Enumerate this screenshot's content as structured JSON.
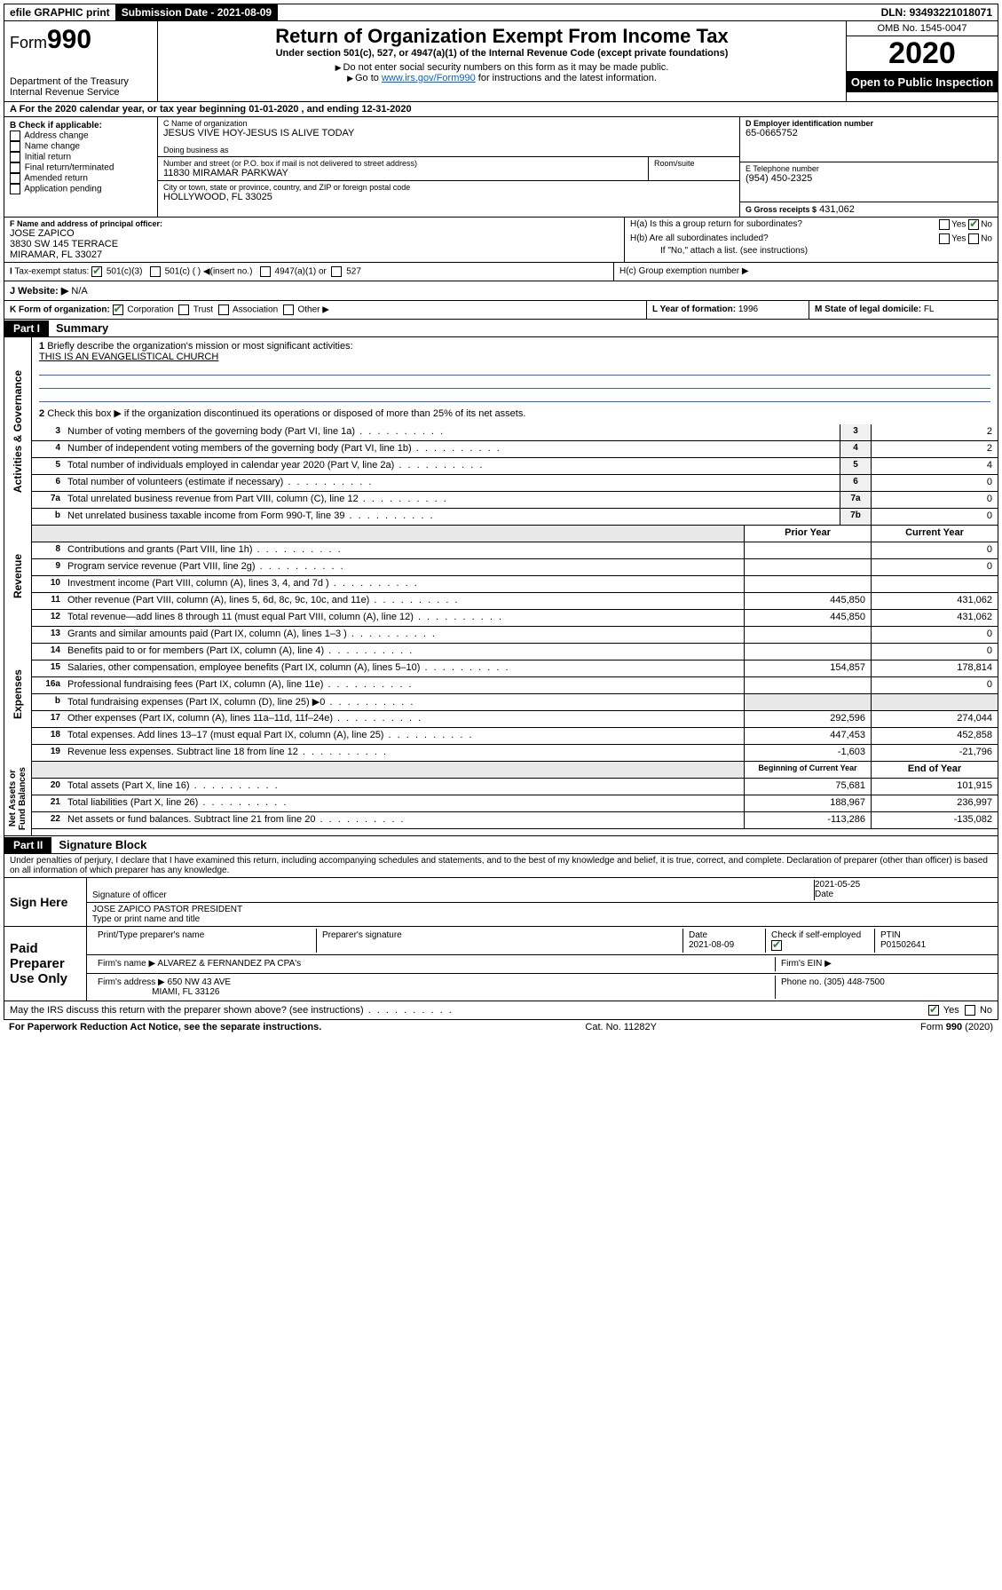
{
  "topbar": {
    "efile": "efile GRAPHIC print",
    "subdate_label": "Submission Date - ",
    "subdate": "2021-08-09",
    "dln_label": "DLN: ",
    "dln": "93493221018071"
  },
  "header": {
    "form_label": "Form",
    "form_num": "990",
    "dept": "Department of the Treasury\nInternal Revenue Service",
    "title": "Return of Organization Exempt From Income Tax",
    "subtitle": "Under section 501(c), 527, or 4947(a)(1) of the Internal Revenue Code (except private foundations)",
    "warn1": "Do not enter social security numbers on this form as it may be made public.",
    "warn2_pre": "Go to ",
    "warn2_link": "www.irs.gov/Form990",
    "warn2_post": " for instructions and the latest information.",
    "omb": "OMB No. 1545-0047",
    "year": "2020",
    "otp": "Open to Public Inspection"
  },
  "row_a": "A For the 2020 calendar year, or tax year beginning 01-01-2020    , and ending 12-31-2020",
  "box_b": {
    "label": "B Check if applicable:",
    "items": [
      "Address change",
      "Name change",
      "Initial return",
      "Final return/terminated",
      "Amended return",
      "Application pending"
    ]
  },
  "box_c": {
    "name_label": "C Name of organization",
    "name": "JESUS VIVE HOY-JESUS IS ALIVE TODAY",
    "dba_label": "Doing business as",
    "addr_label": "Number and street (or P.O. box if mail is not delivered to street address)",
    "room_label": "Room/suite",
    "addr": "11830 MIRAMAR PARKWAY",
    "city_label": "City or town, state or province, country, and ZIP or foreign postal code",
    "city": "HOLLYWOOD, FL  33025"
  },
  "box_d": {
    "label": "D Employer identification number",
    "val": "65-0665752"
  },
  "box_e": {
    "label": "E Telephone number",
    "val": "(954) 450-2325"
  },
  "box_g": {
    "label": "G Gross receipts $",
    "val": "431,062"
  },
  "box_f": {
    "label": "F  Name and address of principal officer:",
    "name": "JOSE ZAPICO",
    "addr1": "3830 SW 145 TERRACE",
    "addr2": "MIRAMAR, FL  33027"
  },
  "box_h": {
    "a": "H(a)  Is this a group return for subordinates?",
    "b": "H(b)  Are all subordinates included?",
    "b_note": "If \"No,\" attach a list. (see instructions)",
    "c": "H(c)  Group exemption number ▶",
    "yes": "Yes",
    "no": "No"
  },
  "box_i": {
    "label": "Tax-exempt status:",
    "o1": "501(c)(3)",
    "o2": "501(c) (  ) ◀(insert no.)",
    "o3": "4947(a)(1) or",
    "o4": "527"
  },
  "box_j": {
    "label": "J   Website: ▶",
    "val": "N/A"
  },
  "box_k": {
    "label": "K Form of organization:",
    "o1": "Corporation",
    "o2": "Trust",
    "o3": "Association",
    "o4": "Other ▶"
  },
  "box_l": {
    "label": "L Year of formation:",
    "val": "1996"
  },
  "box_m": {
    "label": "M State of legal domicile:",
    "val": "FL"
  },
  "part1": {
    "tag": "Part I",
    "title": "Summary"
  },
  "summary": {
    "q1": "Briefly describe the organization's mission or most significant activities:",
    "mission": "THIS IS AN EVANGELISTICAL CHURCH",
    "q2": "Check this box ▶       if the organization discontinued its operations or disposed of more than 25% of its net assets.",
    "lines": [
      {
        "n": "3",
        "d": "Number of voting members of the governing body (Part VI, line 1a)",
        "box": "3",
        "v": "2"
      },
      {
        "n": "4",
        "d": "Number of independent voting members of the governing body (Part VI, line 1b)",
        "box": "4",
        "v": "2"
      },
      {
        "n": "5",
        "d": "Total number of individuals employed in calendar year 2020 (Part V, line 2a)",
        "box": "5",
        "v": "4"
      },
      {
        "n": "6",
        "d": "Total number of volunteers (estimate if necessary)",
        "box": "6",
        "v": "0"
      },
      {
        "n": "7a",
        "d": "Total unrelated business revenue from Part VIII, column (C), line 12",
        "box": "7a",
        "v": "0"
      },
      {
        "n": "b",
        "d": "Net unrelated business taxable income from Form 990-T, line 39",
        "box": "7b",
        "v": "0"
      }
    ],
    "col_prior": "Prior Year",
    "col_curr": "Current Year",
    "rev": [
      {
        "n": "8",
        "d": "Contributions and grants (Part VIII, line 1h)",
        "p": "",
        "c": "0"
      },
      {
        "n": "9",
        "d": "Program service revenue (Part VIII, line 2g)",
        "p": "",
        "c": "0"
      },
      {
        "n": "10",
        "d": "Investment income (Part VIII, column (A), lines 3, 4, and 7d )",
        "p": "",
        "c": ""
      },
      {
        "n": "11",
        "d": "Other revenue (Part VIII, column (A), lines 5, 6d, 8c, 9c, 10c, and 11e)",
        "p": "445,850",
        "c": "431,062"
      },
      {
        "n": "12",
        "d": "Total revenue—add lines 8 through 11 (must equal Part VIII, column (A), line 12)",
        "p": "445,850",
        "c": "431,062"
      }
    ],
    "exp": [
      {
        "n": "13",
        "d": "Grants and similar amounts paid (Part IX, column (A), lines 1–3 )",
        "p": "",
        "c": "0"
      },
      {
        "n": "14",
        "d": "Benefits paid to or for members (Part IX, column (A), line 4)",
        "p": "",
        "c": "0"
      },
      {
        "n": "15",
        "d": "Salaries, other compensation, employee benefits (Part IX, column (A), lines 5–10)",
        "p": "154,857",
        "c": "178,814"
      },
      {
        "n": "16a",
        "d": "Professional fundraising fees (Part IX, column (A), line 11e)",
        "p": "",
        "c": "0"
      },
      {
        "n": "b",
        "d": "Total fundraising expenses (Part IX, column (D), line 25) ▶0",
        "p": null,
        "c": null
      },
      {
        "n": "17",
        "d": "Other expenses (Part IX, column (A), lines 11a–11d, 11f–24e)",
        "p": "292,596",
        "c": "274,044"
      },
      {
        "n": "18",
        "d": "Total expenses. Add lines 13–17 (must equal Part IX, column (A), line 25)",
        "p": "447,453",
        "c": "452,858"
      },
      {
        "n": "19",
        "d": "Revenue less expenses. Subtract line 18 from line 12",
        "p": "-1,603",
        "c": "-21,796"
      }
    ],
    "col_beg": "Beginning of Current Year",
    "col_end": "End of Year",
    "net": [
      {
        "n": "20",
        "d": "Total assets (Part X, line 16)",
        "p": "75,681",
        "c": "101,915"
      },
      {
        "n": "21",
        "d": "Total liabilities (Part X, line 26)",
        "p": "188,967",
        "c": "236,997"
      },
      {
        "n": "22",
        "d": "Net assets or fund balances. Subtract line 21 from line 20",
        "p": "-113,286",
        "c": "-135,082"
      }
    ]
  },
  "side_labels": {
    "gov": "Activities & Governance",
    "rev": "Revenue",
    "exp": "Expenses",
    "net": "Net Assets or\nFund Balances"
  },
  "part2": {
    "tag": "Part II",
    "title": "Signature Block"
  },
  "perjury": "Under penalties of perjury, I declare that I have examined this return, including accompanying schedules and statements, and to the best of my knowledge and belief, it is true, correct, and complete. Declaration of preparer (other than officer) is based on all information of which preparer has any knowledge.",
  "sign": {
    "here": "Sign Here",
    "sig_label": "Signature of officer",
    "date": "2021-05-25",
    "date_label": "Date",
    "name": "JOSE ZAPICO  PASTOR PRESIDENT",
    "name_label": "Type or print name and title"
  },
  "paid": {
    "label": "Paid Preparer Use Only",
    "h_name": "Print/Type preparer's name",
    "h_sig": "Preparer's signature",
    "h_date": "Date",
    "date": "2021-08-09",
    "h_check": "Check        if self-employed",
    "h_ptin": "PTIN",
    "ptin": "P01502641",
    "firm_label": "Firm's name   ▶",
    "firm": "ALVAREZ & FERNANDEZ PA CPA's",
    "ein_label": "Firm's EIN ▶",
    "addr_label": "Firm's address ▶",
    "addr1": "650 NW 43 AVE",
    "addr2": "MIAMI, FL  33126",
    "phone_label": "Phone no.",
    "phone": "(305) 448-7500"
  },
  "discuss": "May the IRS discuss this return with the preparer shown above? (see instructions)",
  "footer": {
    "pra": "For Paperwork Reduction Act Notice, see the separate instructions.",
    "cat": "Cat. No. 11282Y",
    "form": "Form 990 (2020)"
  }
}
